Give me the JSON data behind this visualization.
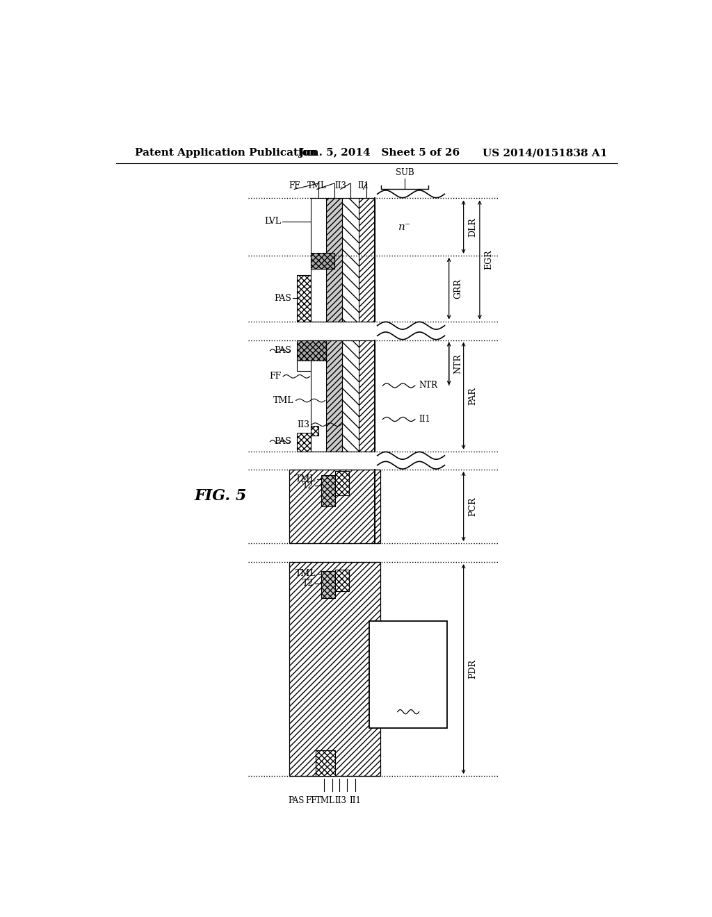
{
  "header_left": "Patent Application Publication",
  "header_mid": "Jun. 5, 2014   Sheet 5 of 26",
  "header_right": "US 2014/0151838 A1",
  "fig_label": "FIG. 5",
  "background": "#ffffff",
  "header_fontsize": 11,
  "body_fontsize": 9,
  "label_fontsize": 9,
  "dim_label_fontsize": 9,
  "fig5_fontsize": 16,
  "regions": [
    "DLR",
    "EGR",
    "GRR",
    "NTR",
    "PAR",
    "PCR",
    "PDR"
  ]
}
